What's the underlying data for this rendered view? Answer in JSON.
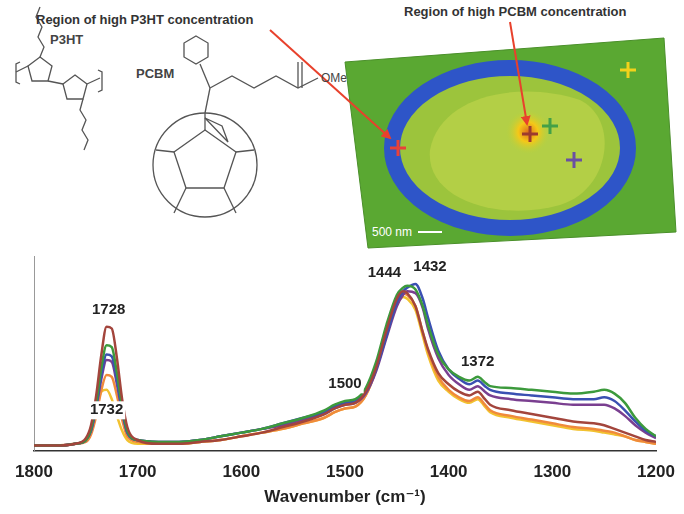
{
  "chart_data": {
    "type": "line",
    "x_label": "Wavenumber (cm⁻¹)",
    "x": [
      1800,
      1780,
      1760,
      1750,
      1745,
      1740,
      1735,
      1730,
      1725,
      1720,
      1715,
      1710,
      1700,
      1680,
      1660,
      1640,
      1620,
      1600,
      1580,
      1560,
      1540,
      1520,
      1510,
      1500,
      1490,
      1480,
      1470,
      1460,
      1450,
      1444,
      1440,
      1432,
      1425,
      1420,
      1410,
      1400,
      1390,
      1380,
      1372,
      1365,
      1360,
      1340,
      1320,
      1300,
      1280,
      1260,
      1250,
      1240,
      1230,
      1220,
      1210,
      1200
    ],
    "xlim": [
      1800,
      1200
    ],
    "xticks": [
      1800,
      1700,
      1600,
      1500,
      1400,
      1300,
      1200
    ],
    "ylim": [
      0,
      1.05
    ],
    "tick_labels": "x",
    "grid": false,
    "series": [
      {
        "color": "#a3453c",
        "values": [
          0.03,
          0.03,
          0.04,
          0.07,
          0.14,
          0.3,
          0.52,
          0.67,
          0.66,
          0.5,
          0.28,
          0.13,
          0.06,
          0.04,
          0.04,
          0.05,
          0.06,
          0.08,
          0.1,
          0.13,
          0.16,
          0.2,
          0.23,
          0.25,
          0.26,
          0.32,
          0.45,
          0.65,
          0.82,
          0.86,
          0.85,
          0.78,
          0.64,
          0.55,
          0.42,
          0.36,
          0.32,
          0.3,
          0.32,
          0.28,
          0.25,
          0.22,
          0.2,
          0.18,
          0.16,
          0.15,
          0.14,
          0.12,
          0.1,
          0.08,
          0.06,
          0.05
        ]
      },
      {
        "color": "#3c9a3c",
        "values": [
          0.03,
          0.03,
          0.04,
          0.06,
          0.12,
          0.26,
          0.45,
          0.57,
          0.56,
          0.42,
          0.24,
          0.11,
          0.06,
          0.05,
          0.05,
          0.06,
          0.08,
          0.1,
          0.12,
          0.15,
          0.18,
          0.22,
          0.25,
          0.27,
          0.28,
          0.34,
          0.48,
          0.68,
          0.84,
          0.88,
          0.89,
          0.87,
          0.78,
          0.68,
          0.52,
          0.44,
          0.4,
          0.38,
          0.4,
          0.37,
          0.35,
          0.34,
          0.33,
          0.32,
          0.31,
          0.32,
          0.33,
          0.31,
          0.26,
          0.18,
          0.12,
          0.08
        ]
      },
      {
        "color": "#3a50b2",
        "values": [
          0.03,
          0.03,
          0.04,
          0.06,
          0.11,
          0.24,
          0.41,
          0.52,
          0.51,
          0.38,
          0.22,
          0.1,
          0.06,
          0.05,
          0.05,
          0.06,
          0.08,
          0.1,
          0.12,
          0.15,
          0.18,
          0.21,
          0.24,
          0.26,
          0.27,
          0.32,
          0.44,
          0.62,
          0.8,
          0.86,
          0.88,
          0.9,
          0.82,
          0.72,
          0.54,
          0.44,
          0.39,
          0.36,
          0.38,
          0.35,
          0.33,
          0.31,
          0.3,
          0.29,
          0.28,
          0.28,
          0.29,
          0.27,
          0.22,
          0.16,
          0.11,
          0.08
        ]
      },
      {
        "color": "#7a3f90",
        "values": [
          0.03,
          0.03,
          0.04,
          0.06,
          0.11,
          0.23,
          0.39,
          0.49,
          0.48,
          0.36,
          0.21,
          0.1,
          0.06,
          0.05,
          0.05,
          0.06,
          0.08,
          0.1,
          0.12,
          0.14,
          0.17,
          0.2,
          0.23,
          0.25,
          0.26,
          0.31,
          0.43,
          0.61,
          0.78,
          0.84,
          0.86,
          0.85,
          0.77,
          0.66,
          0.5,
          0.41,
          0.36,
          0.33,
          0.35,
          0.32,
          0.3,
          0.28,
          0.27,
          0.26,
          0.25,
          0.25,
          0.25,
          0.23,
          0.19,
          0.14,
          0.1,
          0.07
        ]
      },
      {
        "color": "#f08a3c",
        "values": [
          0.03,
          0.03,
          0.04,
          0.05,
          0.09,
          0.19,
          0.33,
          0.41,
          0.4,
          0.3,
          0.17,
          0.08,
          0.05,
          0.04,
          0.04,
          0.05,
          0.06,
          0.08,
          0.1,
          0.12,
          0.15,
          0.18,
          0.21,
          0.23,
          0.24,
          0.3,
          0.44,
          0.64,
          0.8,
          0.85,
          0.84,
          0.78,
          0.64,
          0.54,
          0.4,
          0.33,
          0.29,
          0.27,
          0.29,
          0.25,
          0.22,
          0.19,
          0.17,
          0.15,
          0.13,
          0.12,
          0.11,
          0.1,
          0.08,
          0.06,
          0.05,
          0.04
        ]
      },
      {
        "color": "#f2c230",
        "values": [
          0.03,
          0.03,
          0.04,
          0.06,
          0.11,
          0.22,
          0.32,
          0.33,
          0.28,
          0.19,
          0.11,
          0.06,
          0.04,
          0.04,
          0.04,
          0.05,
          0.06,
          0.08,
          0.1,
          0.12,
          0.15,
          0.18,
          0.21,
          0.23,
          0.24,
          0.3,
          0.44,
          0.64,
          0.79,
          0.83,
          0.82,
          0.76,
          0.62,
          0.52,
          0.38,
          0.32,
          0.28,
          0.26,
          0.28,
          0.24,
          0.21,
          0.18,
          0.16,
          0.14,
          0.12,
          0.11,
          0.1,
          0.09,
          0.08,
          0.06,
          0.05,
          0.04
        ]
      }
    ],
    "annotations": [
      {
        "text": "1728",
        "x": 1728,
        "y": 0.76
      },
      {
        "text": "1732",
        "x": 1730,
        "y": 0.22
      },
      {
        "text": "1500",
        "x": 1500,
        "y": 0.36
      },
      {
        "text": "1444",
        "x": 1462,
        "y": 0.96
      },
      {
        "text": "1432",
        "x": 1418,
        "y": 0.99
      },
      {
        "text": "1372",
        "x": 1372,
        "y": 0.48
      }
    ]
  },
  "image_panel": {
    "labels": [
      "Region of high P3HT concentration",
      "Region of high PCBM concentration"
    ],
    "scale_bar": "500 nm",
    "markers": [
      "#e8413a",
      "#9c3b2e",
      "#43a047",
      "#6a4fa3",
      "#f2d21b"
    ]
  },
  "structures": [
    "P3HT",
    "PCBM",
    "OMe"
  ]
}
